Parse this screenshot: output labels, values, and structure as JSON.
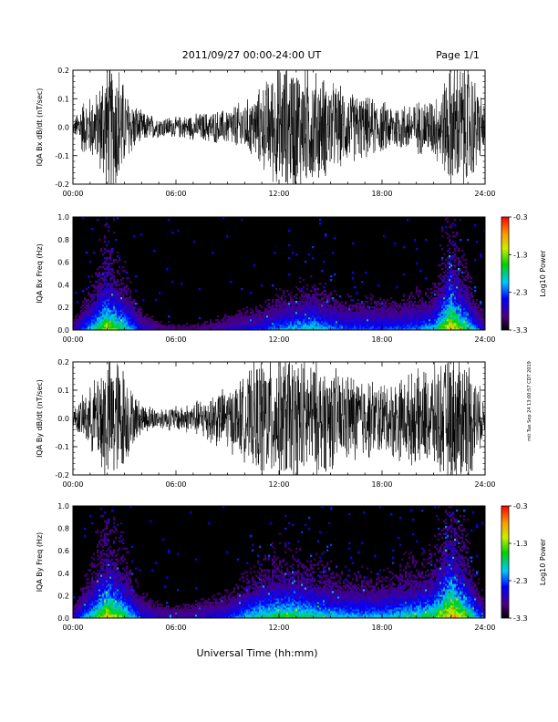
{
  "header": {
    "title": "2011/09/27  00:00-24:00 UT",
    "page_label": "Page 1/1"
  },
  "side_stamp": "mit Tue Sep 24 13:00:57 CDT 2019",
  "xlabel": "Universal Time (hh:mm)",
  "x_ticks": [
    "00:00",
    "06:00",
    "12:00",
    "18:00",
    "24:00"
  ],
  "colors": {
    "trace": "#000000",
    "background": "#ffffff",
    "spectrogram_bg": "#000000"
  },
  "chart_data": [
    {
      "type": "line",
      "ylabel": "IQA Bx dB/dt (nT/sec)",
      "x_range_hours": [
        0,
        24
      ],
      "ylim": [
        -0.2,
        0.2
      ],
      "yticks": [
        "0.2",
        "0.1",
        "0.0",
        "-0.1",
        "-0.2"
      ],
      "x_ticks": [
        "00:00",
        "06:00",
        "12:00",
        "18:00",
        "24:00"
      ],
      "envelope": {
        "x_hours": [
          0,
          0.2,
          0.5,
          1,
          1.5,
          1.75,
          2,
          2.25,
          2.5,
          2.75,
          3,
          3.5,
          4,
          5,
          6,
          7,
          8,
          9,
          9.5,
          10,
          10.5,
          11,
          11.5,
          12,
          13,
          14,
          14.5,
          15,
          16,
          17,
          18,
          19,
          20,
          21,
          21.5,
          22,
          22.5,
          23,
          23.5,
          24
        ],
        "amplitude": [
          0.02,
          0.05,
          0.1,
          0.12,
          0.14,
          0.25,
          0.25,
          0.25,
          0.25,
          0.25,
          0.15,
          0.1,
          0.06,
          0.04,
          0.04,
          0.05,
          0.06,
          0.07,
          0.09,
          0.1,
          0.12,
          0.16,
          0.2,
          0.25,
          0.25,
          0.22,
          0.2,
          0.18,
          0.14,
          0.12,
          0.1,
          0.09,
          0.1,
          0.12,
          0.16,
          0.25,
          0.25,
          0.25,
          0.18,
          0.08
        ]
      }
    },
    {
      "type": "heatmap",
      "ylabel": "IQA Bx Freq (Hz)",
      "x_range_hours": [
        0,
        24
      ],
      "ylim": [
        0.0,
        1.0
      ],
      "yticks": [
        "1.0",
        "0.8",
        "0.6",
        "0.4",
        "0.2",
        "0.0"
      ],
      "x_ticks": [
        "00:00",
        "06:00",
        "12:00",
        "18:00",
        "24:00"
      ],
      "colorbar": {
        "label": "Log10 Power",
        "range": [
          -3.3,
          -0.3
        ],
        "ticks": [
          "-0.3",
          "-1.3",
          "-2.3",
          "-3.3"
        ]
      },
      "intensity_by_hour": [
        0.15,
        0.45,
        0.75,
        0.55,
        0.25,
        0.15,
        0.12,
        0.12,
        0.15,
        0.2,
        0.25,
        0.3,
        0.4,
        0.45,
        0.5,
        0.4,
        0.35,
        0.35,
        0.35,
        0.35,
        0.4,
        0.45,
        0.85,
        0.55,
        0.2
      ]
    },
    {
      "type": "line",
      "ylabel": "IQA By dB/dt (nT/sec)",
      "x_range_hours": [
        0,
        24
      ],
      "ylim": [
        -0.2,
        0.2
      ],
      "yticks": [
        "0.2",
        "0.1",
        "0.0",
        "-0.1",
        "-0.2"
      ],
      "x_ticks": [
        "00:00",
        "06:00",
        "12:00",
        "18:00",
        "24:00"
      ],
      "envelope": {
        "x_hours": [
          0,
          0.5,
          1,
          1.5,
          1.75,
          2,
          2.5,
          3,
          3.5,
          4,
          5,
          6,
          7,
          8,
          9,
          9.5,
          10,
          10.5,
          11,
          11.5,
          12,
          13,
          14,
          15,
          16,
          17,
          18,
          19,
          20,
          21,
          22,
          22.5,
          23,
          23.5,
          24
        ],
        "amplitude": [
          0.03,
          0.08,
          0.12,
          0.18,
          0.25,
          0.25,
          0.25,
          0.2,
          0.1,
          0.06,
          0.04,
          0.05,
          0.06,
          0.1,
          0.12,
          0.14,
          0.16,
          0.2,
          0.25,
          0.25,
          0.25,
          0.25,
          0.22,
          0.2,
          0.18,
          0.16,
          0.14,
          0.16,
          0.18,
          0.2,
          0.25,
          0.25,
          0.25,
          0.16,
          0.06
        ]
      }
    },
    {
      "type": "heatmap",
      "ylabel": "IQA By Freq (Hz)",
      "x_range_hours": [
        0,
        24
      ],
      "ylim": [
        0.0,
        1.0
      ],
      "yticks": [
        "1.0",
        "0.8",
        "0.6",
        "0.4",
        "0.2",
        "0.0"
      ],
      "x_ticks": [
        "00:00",
        "06:00",
        "12:00",
        "18:00",
        "24:00"
      ],
      "colorbar": {
        "label": "Log10 Power",
        "range": [
          -3.3,
          -0.3
        ],
        "ticks": [
          "-0.3",
          "-1.3",
          "-2.3",
          "-3.3"
        ]
      },
      "intensity_by_hour": [
        0.2,
        0.5,
        0.8,
        0.6,
        0.3,
        0.2,
        0.18,
        0.2,
        0.25,
        0.3,
        0.45,
        0.55,
        0.6,
        0.6,
        0.55,
        0.5,
        0.45,
        0.45,
        0.45,
        0.5,
        0.55,
        0.6,
        0.9,
        0.65,
        0.25
      ]
    }
  ]
}
